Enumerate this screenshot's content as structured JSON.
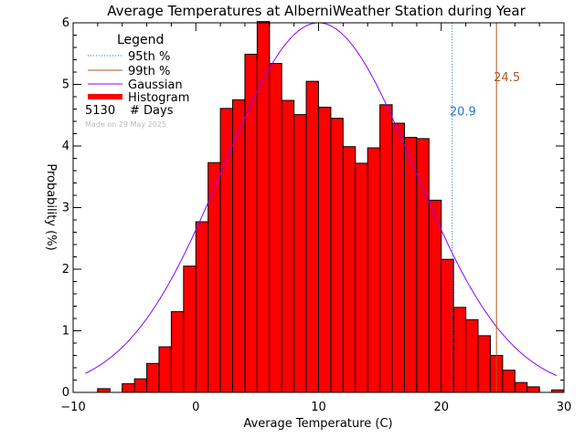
{
  "chart_data": {
    "type": "bar",
    "title": "Average Temperatures at AlberniWeather Station during Year",
    "xlabel": "Average Temperature (C)",
    "ylabel": "Probability (%)",
    "xlim": [
      -10,
      30
    ],
    "ylim": [
      0,
      6
    ],
    "x_ticks": [
      -10,
      0,
      10,
      20,
      30
    ],
    "y_ticks": [
      0,
      1,
      2,
      3,
      4,
      5,
      6
    ],
    "bin_width": 1,
    "bin_start": -9,
    "values": [
      0.0,
      0.06,
      0.0,
      0.14,
      0.22,
      0.47,
      0.74,
      1.31,
      2.05,
      2.77,
      3.73,
      4.61,
      4.75,
      5.49,
      6.02,
      5.34,
      4.74,
      4.51,
      5.05,
      4.63,
      4.45,
      3.99,
      3.72,
      3.97,
      4.67,
      4.37,
      4.14,
      4.12,
      3.12,
      2.16,
      1.38,
      1.18,
      0.92,
      0.6,
      0.36,
      0.16,
      0.09,
      0.0,
      0.04
    ],
    "gaussian": {
      "mean": 10.0,
      "peak": 6.0,
      "sigma": 7.8
    },
    "percentile_95": {
      "value": 20.9,
      "label": "20.9"
    },
    "percentile_99": {
      "value": 24.5,
      "label": "24.5"
    },
    "days_count": "5130",
    "days_label": "# Days",
    "made_on": "Made on 29 May 2025",
    "legend": {
      "title": "Legend",
      "items": [
        {
          "label": "95th %",
          "style": "dotted",
          "color": "#1f77d4"
        },
        {
          "label": "99th %",
          "style": "solid",
          "color": "#b0541f"
        },
        {
          "label": "Gaussian",
          "style": "solid",
          "color": "#8a00ff"
        },
        {
          "label": "Histogram",
          "style": "thick",
          "color": "#ff0000"
        }
      ]
    },
    "colors": {
      "bar_fill": "#ff0000",
      "bar_edge": "#000000",
      "gaussian": "#8a00ff",
      "p95": "#1f77d4",
      "p99": "#b0541f",
      "made_on": "#bbbbbb"
    }
  }
}
